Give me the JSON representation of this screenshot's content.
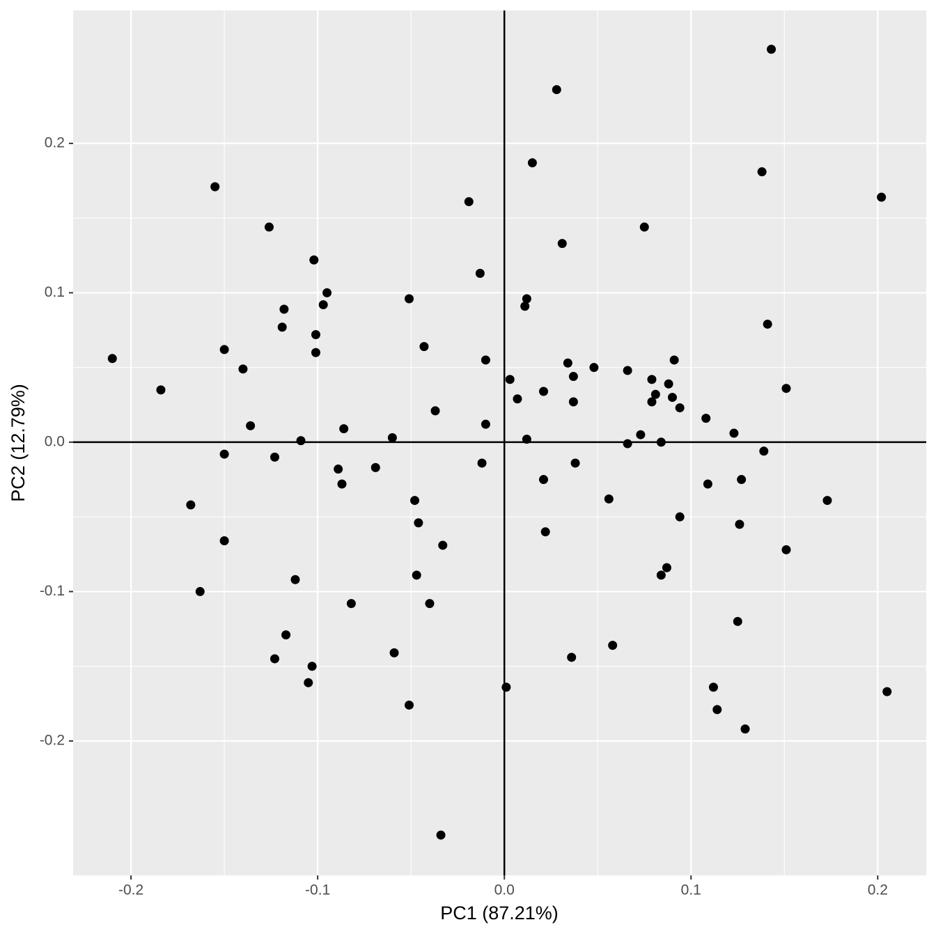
{
  "chart_data": {
    "type": "scatter",
    "x_label": "PC1 (87.21%)",
    "y_label": "PC2 (12.79%)",
    "xlim": [
      -0.231,
      0.226
    ],
    "ylim": [
      -0.29,
      0.289
    ],
    "xticks": [
      -0.2,
      -0.1,
      {
        "value": 0,
        "label": "0.0"
      },
      0.1,
      0.2
    ],
    "yticks": [
      -0.2,
      -0.1,
      {
        "value": 0,
        "label": "0.0"
      },
      0.1,
      0.2
    ],
    "hline": 0,
    "vline": 0,
    "grid": true,
    "color": "#000000",
    "series": [
      {
        "x": [
          0.143,
          0.028,
          0.015,
          0.138,
          0.202,
          -0.155,
          -0.019,
          -0.126,
          0.075,
          0.031,
          -0.102,
          -0.013,
          -0.095,
          0.012,
          -0.051,
          -0.097,
          0.011,
          -0.118,
          -0.119,
          0.141,
          -0.101,
          -0.043,
          -0.15,
          -0.101,
          -0.21,
          -0.01,
          0.091,
          0.034,
          0.048,
          -0.14,
          0.066,
          0.037,
          0.003,
          0.079,
          0.088,
          -0.184,
          0.151,
          0.021,
          0.081,
          0.007,
          0.09,
          0.079,
          0.037,
          0.094,
          -0.037,
          0.108,
          -0.136,
          -0.01,
          -0.086,
          0.123,
          0.073,
          -0.06,
          0.012,
          -0.109,
          0.084,
          0.066,
          0.139,
          -0.15,
          -0.123,
          -0.012,
          0.038,
          -0.069,
          -0.089,
          0.021,
          0.127,
          -0.087,
          0.109,
          0.056,
          -0.048,
          0.173,
          -0.168,
          0.094,
          -0.046,
          0.126,
          0.022,
          -0.15,
          -0.033,
          0.151,
          0.087,
          -0.047,
          0.084,
          -0.112,
          -0.163,
          -0.082,
          -0.04,
          0.125,
          -0.117,
          0.058,
          -0.059,
          0.036,
          -0.123,
          -0.103,
          -0.105,
          0.001,
          0.112,
          0.205,
          -0.051,
          0.114,
          0.129,
          -0.034
        ],
        "values": [
          0.263,
          0.236,
          0.187,
          0.181,
          0.164,
          0.171,
          0.161,
          0.144,
          0.144,
          0.133,
          0.122,
          0.113,
          0.1,
          0.096,
          0.096,
          0.092,
          0.091,
          0.089,
          0.077,
          0.079,
          0.072,
          0.064,
          0.062,
          0.06,
          0.056,
          0.055,
          0.055,
          0.053,
          0.05,
          0.049,
          0.048,
          0.044,
          0.042,
          0.042,
          0.039,
          0.035,
          0.036,
          0.034,
          0.032,
          0.029,
          0.03,
          0.027,
          0.027,
          0.023,
          0.021,
          0.016,
          0.011,
          0.012,
          0.009,
          0.006,
          0.005,
          0.003,
          0.002,
          0.001,
          0.0,
          -0.001,
          -0.006,
          -0.008,
          -0.01,
          -0.014,
          -0.014,
          -0.017,
          -0.018,
          -0.025,
          -0.025,
          -0.028,
          -0.028,
          -0.038,
          -0.039,
          -0.039,
          -0.042,
          -0.05,
          -0.054,
          -0.055,
          -0.06,
          -0.066,
          -0.069,
          -0.072,
          -0.084,
          -0.089,
          -0.089,
          -0.092,
          -0.1,
          -0.108,
          -0.108,
          -0.12,
          -0.129,
          -0.136,
          -0.141,
          -0.144,
          -0.145,
          -0.15,
          -0.161,
          -0.164,
          -0.164,
          -0.167,
          -0.176,
          -0.179,
          -0.192,
          -0.263
        ]
      }
    ]
  }
}
